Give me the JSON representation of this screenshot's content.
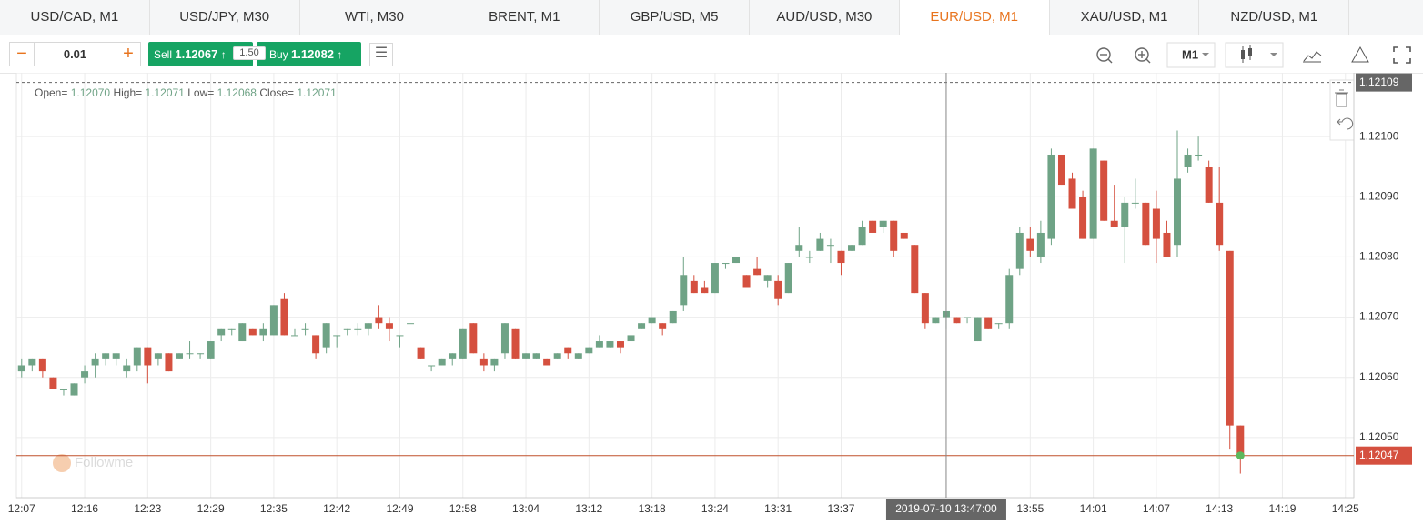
{
  "tabs": [
    "USD/CAD, M1",
    "USD/JPY, M30",
    "WTI, M30",
    "BRENT, M1",
    "GBP/USD, M5",
    "AUD/USD, M30",
    "EUR/USD, M1",
    "XAU/USD, M1",
    "NZD/USD, M1"
  ],
  "active_tab": 6,
  "toolbar": {
    "lot": "0.01",
    "sell_label": "Sell",
    "sell_price": "1.12067",
    "spread": "1.50",
    "buy_label": "Buy",
    "buy_price": "1.12082",
    "timeframe": "M1"
  },
  "ohlc_header": {
    "open_label": "Open=",
    "open": "1.12070",
    "high_label": "High=",
    "high": "1.12071",
    "low_label": "Low=",
    "low": "1.12068",
    "close_label": "Close=",
    "close": "1.12071"
  },
  "watermark": "Followme",
  "chart": {
    "type": "candlestick",
    "up_color": "#6fa386",
    "down_color": "#d5503f",
    "ylim": [
      1.1204,
      1.1211
    ],
    "yticks": [
      {
        "value": 1.121,
        "label": "1.12100"
      },
      {
        "value": 1.1209,
        "label": "1.12090"
      },
      {
        "value": 1.1208,
        "label": "1.12080"
      },
      {
        "value": 1.1207,
        "label": "1.12070"
      },
      {
        "value": 1.1206,
        "label": "1.12060"
      },
      {
        "value": 1.1205,
        "label": "1.12050"
      }
    ],
    "xlim": [
      -0.5,
      126.8
    ],
    "xticks": [
      {
        "value": 0,
        "label": "12:07"
      },
      {
        "value": 6,
        "label": "12:16"
      },
      {
        "value": 12,
        "label": "12:23"
      },
      {
        "value": 18,
        "label": "12:29"
      },
      {
        "value": 24,
        "label": "12:35"
      },
      {
        "value": 30,
        "label": "12:42"
      },
      {
        "value": 36,
        "label": "12:49"
      },
      {
        "value": 42,
        "label": "12:58"
      },
      {
        "value": 48,
        "label": "13:04"
      },
      {
        "value": 54,
        "label": "13:12"
      },
      {
        "value": 60,
        "label": "13:18"
      },
      {
        "value": 66,
        "label": "13:24"
      },
      {
        "value": 72,
        "label": "13:31"
      },
      {
        "value": 78,
        "label": "13:37"
      },
      {
        "value": 96,
        "label": "13:55"
      },
      {
        "value": 102,
        "label": "14:01"
      },
      {
        "value": 108,
        "label": "14:07"
      },
      {
        "value": 114,
        "label": "14:13"
      },
      {
        "value": 120,
        "label": "14:19"
      },
      {
        "value": 126,
        "label": "14:25"
      }
    ],
    "open": [
      1.12061,
      1.12062,
      1.12063,
      1.1206,
      1.12058,
      1.12057,
      1.1206,
      1.12062,
      1.12063,
      1.12063,
      1.12061,
      1.12062,
      1.12065,
      1.12063,
      1.12064,
      1.12063,
      1.12064,
      1.12064,
      1.12063,
      1.12067,
      1.12068,
      1.12066,
      1.12068,
      1.12067,
      1.12067,
      1.12073,
      1.12067,
      1.12068,
      1.12067,
      1.12065,
      1.12067,
      1.12068,
      1.12068,
      1.12068,
      1.1207,
      1.12069,
      1.12067,
      1.12069,
      1.12065,
      1.12062,
      1.12062,
      1.12063,
      1.12063,
      1.12069,
      1.12063,
      1.12062,
      1.12064,
      1.12068,
      1.12063,
      1.12063,
      1.12063,
      1.12063,
      1.12065,
      1.12063,
      1.12064,
      1.12065,
      1.12065,
      1.12066,
      1.12066,
      1.12068,
      1.12069,
      1.12069,
      1.12069,
      1.12072,
      1.12076,
      1.12075,
      1.12074,
      1.12079,
      1.12079,
      1.12077,
      1.12078,
      1.12076,
      1.12076,
      1.12074,
      1.12081,
      1.1208,
      1.12081,
      1.12082,
      1.12081,
      1.12081,
      1.12082,
      1.12086,
      1.12085,
      1.12086,
      1.12084,
      1.12082,
      1.12074,
      1.12069,
      1.1207,
      1.1207,
      1.1207,
      1.12066,
      1.1207,
      1.12069,
      1.12069,
      1.12078,
      1.12083,
      1.1208,
      1.12083,
      1.12097,
      1.12093,
      1.1209,
      1.12083,
      1.12096,
      1.12086,
      1.12085,
      1.12089,
      1.12089,
      1.12088,
      1.12084,
      1.12082,
      1.12095,
      1.12097,
      1.12095,
      1.12089,
      1.12081,
      1.12052
    ],
    "high": [
      1.12063,
      1.12063,
      1.12063,
      1.1206,
      1.12058,
      1.12059,
      1.12062,
      1.12064,
      1.12064,
      1.12064,
      1.12063,
      1.12065,
      1.12065,
      1.12064,
      1.12064,
      1.12064,
      1.12066,
      1.12064,
      1.12066,
      1.12068,
      1.12068,
      1.12069,
      1.12068,
      1.12069,
      1.12072,
      1.12074,
      1.12068,
      1.12069,
      1.12067,
      1.12069,
      1.12067,
      1.12068,
      1.12069,
      1.12069,
      1.12072,
      1.1207,
      1.12067,
      1.12069,
      1.12065,
      1.12062,
      1.12063,
      1.12064,
      1.12068,
      1.12069,
      1.12064,
      1.12063,
      1.12069,
      1.12068,
      1.12064,
      1.12064,
      1.12063,
      1.12064,
      1.12065,
      1.12064,
      1.12065,
      1.12067,
      1.12066,
      1.12066,
      1.12067,
      1.12069,
      1.1207,
      1.12069,
      1.12071,
      1.1208,
      1.12077,
      1.12076,
      1.12079,
      1.12079,
      1.1208,
      1.12077,
      1.1208,
      1.12077,
      1.12077,
      1.12079,
      1.12085,
      1.12081,
      1.12084,
      1.12083,
      1.12081,
      1.12082,
      1.12086,
      1.12086,
      1.12086,
      1.12086,
      1.12084,
      1.12082,
      1.12074,
      1.1207,
      1.12071,
      1.1207,
      1.1207,
      1.1207,
      1.1207,
      1.12069,
      1.12078,
      1.12085,
      1.12085,
      1.12086,
      1.12098,
      1.12097,
      1.12094,
      1.12091,
      1.12098,
      1.12096,
      1.12092,
      1.1209,
      1.12093,
      1.12089,
      1.12091,
      1.12086,
      1.12101,
      1.12098,
      1.121,
      1.12096,
      1.12095,
      1.12081,
      1.12052
    ],
    "low": [
      1.1206,
      1.12061,
      1.1206,
      1.12058,
      1.12057,
      1.12057,
      1.12059,
      1.1206,
      1.12062,
      1.12062,
      1.1206,
      1.12061,
      1.12059,
      1.12062,
      1.12061,
      1.12063,
      1.12063,
      1.12063,
      1.12063,
      1.12066,
      1.12067,
      1.12066,
      1.12067,
      1.12066,
      1.12067,
      1.12067,
      1.12067,
      1.12067,
      1.12063,
      1.12064,
      1.12065,
      1.12067,
      1.12067,
      1.12067,
      1.12068,
      1.12066,
      1.12065,
      1.12069,
      1.12063,
      1.12061,
      1.12062,
      1.12062,
      1.12063,
      1.12064,
      1.12061,
      1.12061,
      1.12063,
      1.12063,
      1.12063,
      1.12063,
      1.12062,
      1.12063,
      1.12063,
      1.12063,
      1.12064,
      1.12065,
      1.12065,
      1.12064,
      1.12066,
      1.12068,
      1.12069,
      1.12067,
      1.12069,
      1.12071,
      1.12074,
      1.12074,
      1.12074,
      1.12078,
      1.12079,
      1.12075,
      1.12077,
      1.12075,
      1.12072,
      1.12074,
      1.1208,
      1.12079,
      1.12081,
      1.12079,
      1.12077,
      1.12081,
      1.12082,
      1.12084,
      1.12084,
      1.1208,
      1.12083,
      1.12074,
      1.12068,
      1.12069,
      1.12068,
      1.12069,
      1.12069,
      1.12066,
      1.12068,
      1.12068,
      1.12068,
      1.12077,
      1.1208,
      1.12079,
      1.12082,
      1.12092,
      1.12088,
      1.12083,
      1.12083,
      1.12086,
      1.12085,
      1.12079,
      1.12088,
      1.12082,
      1.12079,
      1.1208,
      1.1208,
      1.12094,
      1.12096,
      1.12089,
      1.12081,
      1.12048,
      1.12044
    ],
    "close": [
      1.12062,
      1.12063,
      1.12061,
      1.12058,
      1.12058,
      1.12059,
      1.12061,
      1.12063,
      1.12064,
      1.12064,
      1.12062,
      1.12065,
      1.12062,
      1.12064,
      1.12061,
      1.12064,
      1.12064,
      1.12064,
      1.12066,
      1.12068,
      1.12068,
      1.12069,
      1.12067,
      1.12068,
      1.12072,
      1.12067,
      1.12067,
      1.12068,
      1.12064,
      1.12069,
      1.12067,
      1.12068,
      1.12068,
      1.12069,
      1.12069,
      1.12068,
      1.12067,
      1.12069,
      1.12063,
      1.12062,
      1.12063,
      1.12064,
      1.12068,
      1.12064,
      1.12062,
      1.12063,
      1.12069,
      1.12063,
      1.12064,
      1.12064,
      1.12062,
      1.12064,
      1.12064,
      1.12064,
      1.12065,
      1.12066,
      1.12066,
      1.12065,
      1.12067,
      1.12069,
      1.1207,
      1.12068,
      1.12071,
      1.12077,
      1.12074,
      1.12074,
      1.12079,
      1.12079,
      1.1208,
      1.12075,
      1.12077,
      1.12077,
      1.12073,
      1.12079,
      1.12082,
      1.1208,
      1.12083,
      1.12082,
      1.12079,
      1.12082,
      1.12085,
      1.12084,
      1.12086,
      1.12081,
      1.12083,
      1.12074,
      1.12069,
      1.1207,
      1.12071,
      1.12069,
      1.1207,
      1.1207,
      1.12068,
      1.12069,
      1.12077,
      1.12084,
      1.12081,
      1.12084,
      1.12097,
      1.12092,
      1.12088,
      1.12083,
      1.12098,
      1.12086,
      1.12085,
      1.12089,
      1.12089,
      1.12082,
      1.12083,
      1.1208,
      1.12093,
      1.12097,
      1.12097,
      1.12089,
      1.12082,
      1.12052,
      1.12047
    ],
    "high_line": 1.12109,
    "last_price": 1.12047,
    "crosshair_index": 88,
    "crosshair_label": "2019-07-10 13:47:00"
  }
}
